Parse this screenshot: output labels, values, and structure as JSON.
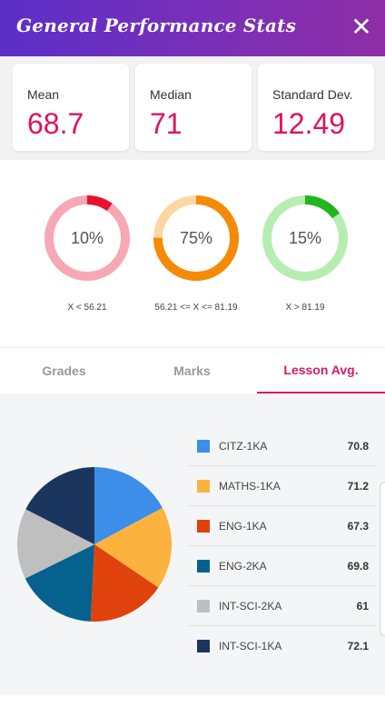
{
  "header": {
    "title": "General Performance Stats",
    "close_icon": "close-icon"
  },
  "stats": [
    {
      "label": "Mean",
      "value": "68.7"
    },
    {
      "label": "Median",
      "value": "71"
    },
    {
      "label": "Standard Dev.",
      "value": "12.49"
    }
  ],
  "donuts": [
    {
      "percent_text": "10%",
      "fraction": 0.1,
      "range": "X < 56.21",
      "color": "#e8112d",
      "track": "#f7a8b5"
    },
    {
      "percent_text": "75%",
      "fraction": 0.75,
      "range": "56.21 <= X <= 81.19",
      "color": "#f58a07",
      "track": "#fcd7a3"
    },
    {
      "percent_text": "15%",
      "fraction": 0.15,
      "range": "X > 81.19",
      "color": "#22b51f",
      "track": "#b6eeb1"
    }
  ],
  "tabs": [
    {
      "label": "Grades",
      "active": false
    },
    {
      "label": "Marks",
      "active": false
    },
    {
      "label": "Lesson Avg.",
      "active": true
    }
  ],
  "chart_data": {
    "type": "pie",
    "categories": [
      "CITZ-1KA",
      "MATHS-1KA",
      "ENG-1KA",
      "ENG-2KA",
      "INT-SCI-2KA",
      "INT-SCI-1KA"
    ],
    "values": [
      70.8,
      71.2,
      67.3,
      69.8,
      61,
      72.1
    ],
    "value_labels": [
      "70.8",
      "71.2",
      "67.3",
      "69.8",
      "61",
      "72.1"
    ],
    "colors": [
      "#3d8ee8",
      "#fbb33e",
      "#e0420d",
      "#05628f",
      "#bfbfbf",
      "#1a365f"
    ],
    "legend": "right"
  }
}
